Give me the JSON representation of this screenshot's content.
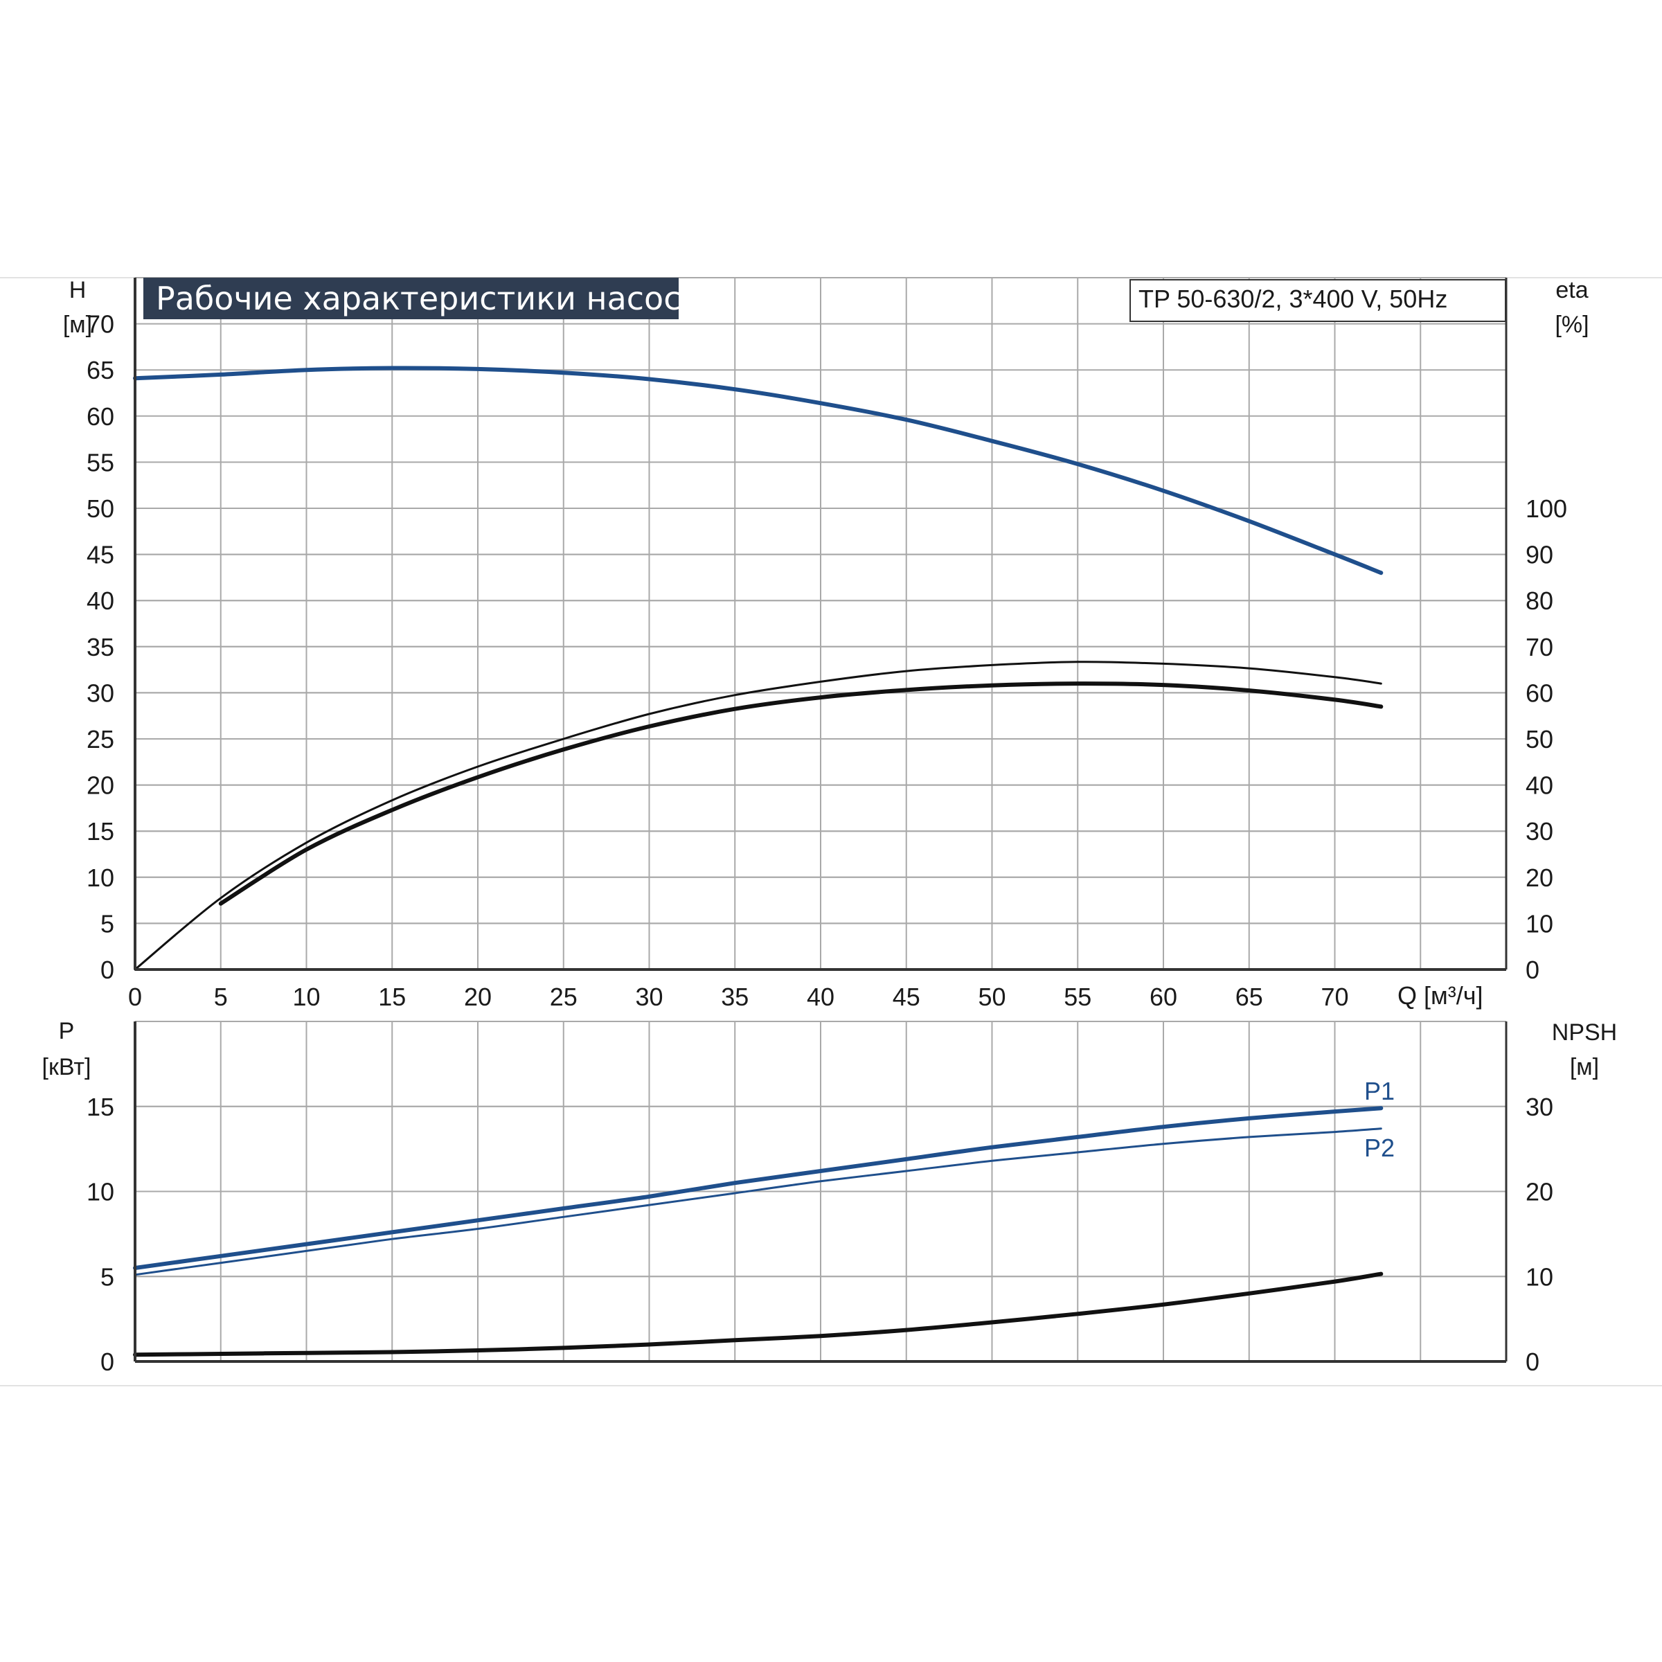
{
  "title": "Рабочие характеристики насоса",
  "model": "TP 50-630/2, 3*400 V, 50Hz",
  "colors": {
    "blue": "#1f4f8c",
    "black": "#111111",
    "grid": "#a9a9a9",
    "title_bg": "#2f3d52"
  },
  "chart_data": [
    {
      "type": "line",
      "panel": "top",
      "y_label_left": [
        "H",
        "[м]"
      ],
      "y_label_right": [
        "eta",
        "[%]"
      ],
      "x_label": "Q [м³/ч]",
      "xlim": [
        0,
        80
      ],
      "x_ticks": [
        0,
        5,
        10,
        15,
        20,
        25,
        30,
        35,
        40,
        45,
        50,
        55,
        60,
        65,
        70
      ],
      "ylim_left": [
        0,
        75
      ],
      "y_ticks_left": [
        0,
        5,
        10,
        15,
        20,
        25,
        30,
        35,
        40,
        45,
        50,
        55,
        60,
        65,
        70
      ],
      "ylim_right": [
        0,
        150
      ],
      "y_ticks_right": [
        0,
        10,
        20,
        30,
        40,
        50,
        60,
        70,
        80,
        90,
        100
      ],
      "grid": true,
      "series": [
        {
          "name": "",
          "axis": "left",
          "color": "blue",
          "width": 6,
          "x": [
            0,
            5,
            10,
            15,
            20,
            25,
            30,
            35,
            40,
            45,
            50,
            55,
            60,
            65,
            70,
            72.7
          ],
          "y": [
            64.1,
            64.5,
            65.0,
            65.2,
            65.1,
            64.7,
            64.0,
            62.9,
            61.4,
            59.6,
            57.3,
            54.8,
            51.9,
            48.6,
            45.0,
            43.0
          ]
        },
        {
          "name": "",
          "axis": "right",
          "color": "black",
          "width": 3,
          "x": [
            0,
            5,
            10,
            15,
            20,
            25,
            30,
            35,
            40,
            45,
            50,
            55,
            60,
            65,
            70,
            72.7
          ],
          "y": [
            0,
            15.5,
            27.5,
            36.7,
            44.0,
            50.0,
            55.4,
            59.5,
            62.4,
            64.7,
            66.0,
            66.7,
            66.3,
            65.3,
            63.4,
            62.0
          ]
        },
        {
          "name": "",
          "axis": "right",
          "color": "black",
          "width": 6,
          "x": [
            5,
            10,
            15,
            20,
            25,
            30,
            35,
            40,
            45,
            50,
            55,
            60,
            65,
            70,
            72.7
          ],
          "y": [
            14.3,
            26.0,
            34.6,
            41.7,
            47.7,
            52.7,
            56.5,
            59.0,
            60.6,
            61.6,
            62.0,
            61.7,
            60.5,
            58.5,
            57.0
          ]
        }
      ]
    },
    {
      "type": "line",
      "panel": "bottom",
      "y_label_left": [
        "P",
        "[кВт]"
      ],
      "y_label_right": [
        "NPSH",
        "[м]"
      ],
      "xlim": [
        0,
        80
      ],
      "ylim_left": [
        0,
        20
      ],
      "y_ticks_left": [
        0,
        5,
        10,
        15
      ],
      "ylim_right": [
        0,
        40
      ],
      "y_ticks_right": [
        0,
        10,
        20,
        30
      ],
      "grid": true,
      "series": [
        {
          "name": "P1",
          "axis": "left",
          "color": "blue",
          "width": 6,
          "x": [
            0,
            5,
            10,
            15,
            20,
            25,
            30,
            35,
            40,
            45,
            50,
            55,
            60,
            65,
            70,
            72.7
          ],
          "y": [
            5.5,
            6.2,
            6.9,
            7.6,
            8.3,
            9.0,
            9.7,
            10.5,
            11.2,
            11.9,
            12.6,
            13.2,
            13.8,
            14.3,
            14.7,
            14.9
          ]
        },
        {
          "name": "P2",
          "axis": "left",
          "color": "blue",
          "width": 3,
          "x": [
            0,
            5,
            10,
            15,
            20,
            25,
            30,
            35,
            40,
            45,
            50,
            55,
            60,
            65,
            70,
            72.7
          ],
          "y": [
            5.1,
            5.8,
            6.5,
            7.2,
            7.8,
            8.5,
            9.2,
            9.9,
            10.6,
            11.2,
            11.8,
            12.3,
            12.8,
            13.2,
            13.5,
            13.7
          ]
        },
        {
          "name": "",
          "axis": "right",
          "color": "black",
          "width": 6,
          "x": [
            0,
            5,
            10,
            15,
            20,
            25,
            30,
            35,
            40,
            45,
            50,
            55,
            60,
            65,
            70,
            72.7
          ],
          "y": [
            0.8,
            0.9,
            1.0,
            1.1,
            1.3,
            1.6,
            2.0,
            2.5,
            3.0,
            3.7,
            4.6,
            5.6,
            6.7,
            8.0,
            9.4,
            10.3
          ]
        }
      ]
    }
  ]
}
